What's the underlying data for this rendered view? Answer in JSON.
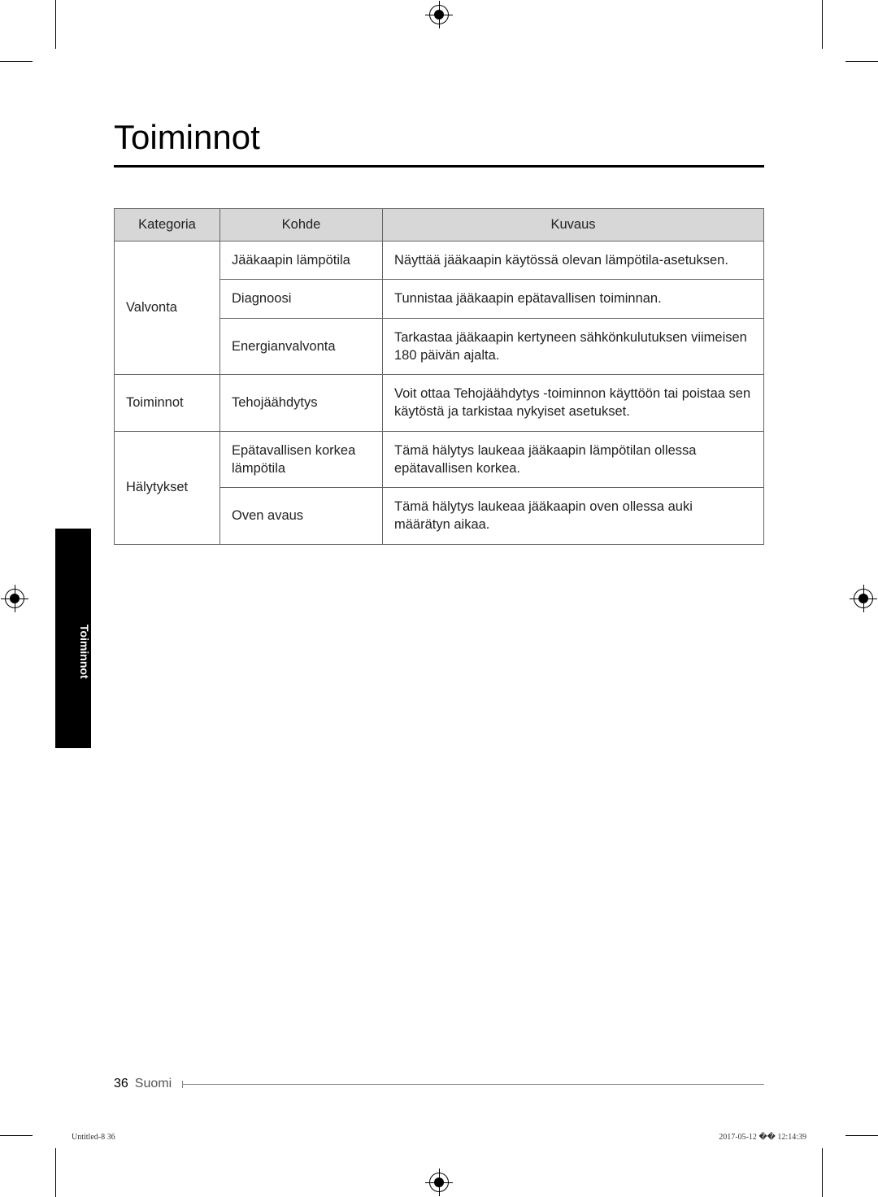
{
  "title": "Toiminnot",
  "sideTab": "Toiminnot",
  "table": {
    "headers": {
      "cat": "Kategoria",
      "item": "Kohde",
      "desc": "Kuvaus"
    },
    "rows": [
      {
        "cat": "Valvonta",
        "item": "Jääkaapin lämpötila",
        "desc": "Näyttää jääkaapin käytössä olevan lämpötila-asetuksen.",
        "catRowspan": 3
      },
      {
        "item": "Diagnoosi",
        "desc": "Tunnistaa jääkaapin epätavallisen toiminnan."
      },
      {
        "item": "Energianvalvonta",
        "desc": "Tarkastaa jääkaapin kertyneen sähkönkulutuksen viimeisen 180 päivän ajalta."
      },
      {
        "cat": "Toiminnot",
        "item": "Tehojäähdytys",
        "desc": "Voit ottaa Tehojäähdytys -toiminnon käyttöön tai poistaa sen käytöstä ja tarkistaa nykyiset asetukset.",
        "catRowspan": 1
      },
      {
        "cat": "Hälytykset",
        "item": "Epätavallisen korkea lämpötila",
        "desc": "Tämä hälytys laukeaa jääkaapin lämpötilan ollessa epätavallisen korkea.",
        "catRowspan": 2
      },
      {
        "item": "Oven avaus",
        "desc": "Tämä hälytys laukeaa jääkaapin oven ollessa auki määrätyn aikaa."
      }
    ]
  },
  "footer": {
    "page": "36",
    "language": "Suomi"
  },
  "meta": {
    "left": "Untitled-8   36",
    "right": "2017-05-12   �� 12:14:39"
  }
}
